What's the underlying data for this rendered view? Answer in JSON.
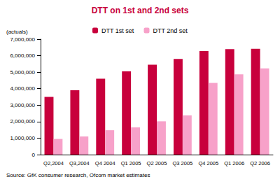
{
  "chart_data": {
    "type": "bar",
    "title": "DTT on 1st and 2nd sets",
    "ylabel": "(actuals)",
    "source": "Source: GfK consumer research, Ofcom market estimates",
    "categories": [
      "Q2,2004",
      "Q3,2004",
      "Q4 2004",
      "Q1 2005",
      "Q2 2005",
      "Q3 2005",
      "Q4 2005",
      "Q1 2006",
      "Q2 2006"
    ],
    "series": [
      {
        "name": "DTT 1st set",
        "color": "#c8003c",
        "values": [
          3500000,
          3900000,
          4600000,
          5050000,
          5450000,
          5800000,
          6280000,
          6400000,
          6420000
        ]
      },
      {
        "name": "DTT 2nd set",
        "color": "#f7a1c9",
        "values": [
          950000,
          1100000,
          1480000,
          1650000,
          2020000,
          2380000,
          4350000,
          4870000,
          5230000
        ]
      }
    ],
    "ylim": [
      0,
      7000000
    ],
    "yticks": [
      0,
      {
        "value": 1000000,
        "label": "1,000,000"
      },
      {
        "value": 2000000,
        "label": "2,000,000"
      },
      {
        "value": 3000000,
        "label": "3,000,000"
      },
      {
        "value": 4000000,
        "label": "4,000,000"
      },
      {
        "value": 5000000,
        "label": "5,000,000"
      },
      {
        "value": 6000000,
        "label": "6,000,000"
      },
      {
        "value": 7000000,
        "label": "7,000,000"
      }
    ],
    "grid": false,
    "legend": "top"
  }
}
